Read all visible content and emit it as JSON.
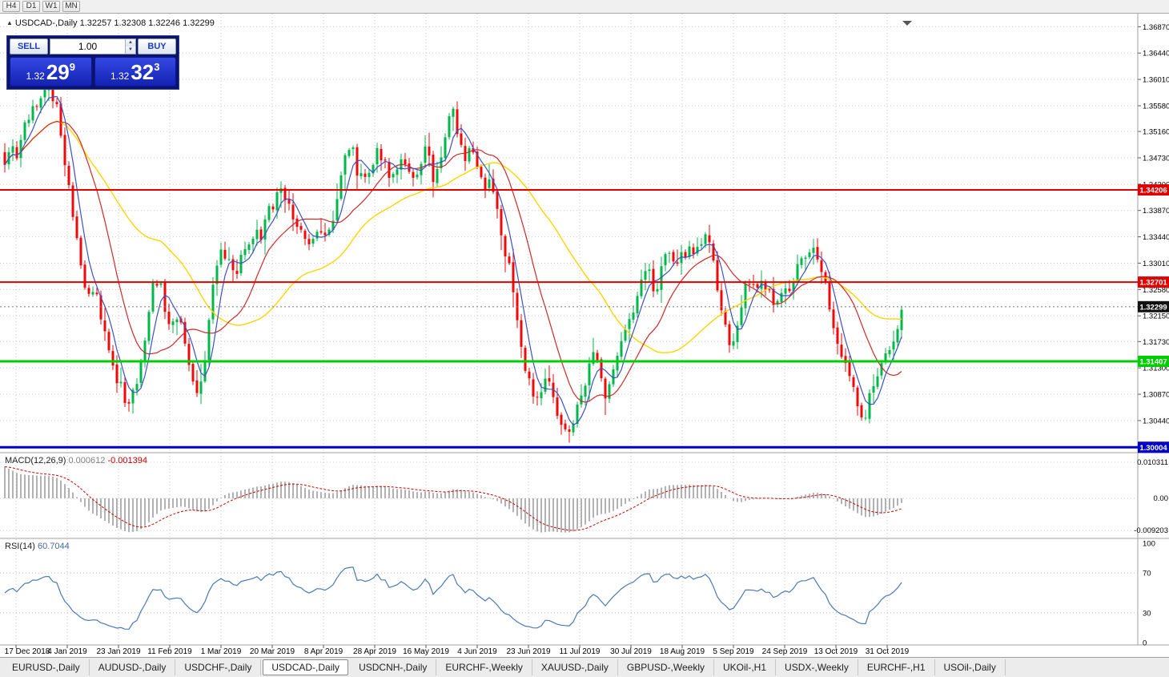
{
  "window_toolbar": {
    "timeframes": [
      "H4",
      "D1",
      "W1",
      "MN"
    ]
  },
  "chart_header": {
    "icon": "▲",
    "symbol": "USDCAD-,Daily",
    "ohlc": "1.32257 1.32308 1.32246 1.32299"
  },
  "trade_panel": {
    "sell_label": "SELL",
    "buy_label": "BUY",
    "volume": "1.00",
    "spin_up_icon": "▲",
    "spin_down_icon": "▼",
    "sell_price": {
      "small": "1.32",
      "big": "29",
      "sup": "9"
    },
    "buy_price": {
      "small": "1.32",
      "big": "32",
      "sup": "3"
    }
  },
  "indicators": {
    "macd": {
      "name": "MACD(12,26,9)",
      "value_main": "0.000612",
      "value_signal": "-0.001394",
      "axis_labels": [
        "0.010311",
        "0.00",
        "-0.009203"
      ]
    },
    "rsi": {
      "name": "RSI(14)",
      "value": "60.7044",
      "axis_labels": [
        "100",
        "70",
        "30",
        "0"
      ],
      "levels": [
        70,
        30
      ]
    }
  },
  "bottom_tabs": {
    "active": "USDCAD-,Daily",
    "tabs": [
      "EURUSD-,Daily",
      "AUDUSD-,Daily",
      "USDCHF-,Daily",
      "USDCAD-,Daily",
      "USDCNH-,Daily",
      "EURCHF-,Weekly",
      "XAUUSD-,Daily",
      "GBPUSD-,Weekly",
      "UKOil-,H1",
      "USDX-,Weekly",
      "EURCHF-,H1",
      "USOil-,Daily"
    ]
  },
  "chart_data": {
    "type": "candlestick",
    "symbol": "USDCAD",
    "timeframe": "Daily",
    "title": "USDCAD-,Daily",
    "price_axis_ticks": [
      "1.36870",
      "1.36440",
      "1.36010",
      "1.35580",
      "1.35160",
      "1.34730",
      "1.34300",
      "1.33870",
      "1.33440",
      "1.33010",
      "1.32580",
      "1.32150",
      "1.31730",
      "1.31300",
      "1.30870",
      "1.30440"
    ],
    "date_axis_ticks": [
      "17 Dec 2018",
      "4 Jan 2019",
      "23 Jan 2019",
      "11 Feb 2019",
      "1 Mar 2019",
      "20 Mar 2019",
      "8 Apr 2019",
      "28 Apr 2019",
      "16 May 2019",
      "4 Jun 2019",
      "23 Jun 2019",
      "11 Jul 2019",
      "30 Jul 2019",
      "18 Aug 2019",
      "5 Sep 2019",
      "24 Sep 2019",
      "13 Oct 2019",
      "31 Oct 2019"
    ],
    "price_range": [
      1.29916,
      1.37084
    ],
    "current_price": {
      "value": 1.32299,
      "label": "1.32299"
    },
    "hlines": [
      {
        "price": 1.34206,
        "label": "1.34206",
        "color": "#e00000",
        "width": 2
      },
      {
        "price": 1.32701,
        "label": "1.32701",
        "color": "#e00000",
        "width": 2
      },
      {
        "price": 1.31407,
        "label": "1.31407",
        "color": "#00ce00",
        "width": 3
      },
      {
        "price": 1.30004,
        "label": "1.30004",
        "color": "#0000c8",
        "width": 3
      }
    ],
    "moving_averages": [
      {
        "name": "MA-fast",
        "period": 5,
        "color": "#3c50c8"
      },
      {
        "name": "MA-mid",
        "period": 15,
        "color": "#d02828"
      },
      {
        "name": "MA-slow",
        "period": 40,
        "color": "#ffd400"
      }
    ],
    "macd": {
      "fast": 12,
      "slow": 26,
      "signal": 9,
      "axis_max": 0.010311,
      "axis_min": -0.009203
    },
    "rsi": {
      "period": 14,
      "current": 60.7044
    },
    "close_keypoints": [
      [
        6,
        1.347
      ],
      [
        14,
        1.35
      ],
      [
        22,
        1.348
      ],
      [
        30,
        1.352
      ],
      [
        38,
        1.354
      ],
      [
        46,
        1.356
      ],
      [
        54,
        1.358
      ],
      [
        62,
        1.3592
      ],
      [
        70,
        1.356
      ],
      [
        78,
        1.348
      ],
      [
        86,
        1.342
      ],
      [
        94,
        1.335
      ],
      [
        102,
        1.328
      ],
      [
        110,
        1.324
      ],
      [
        118,
        1.327
      ],
      [
        126,
        1.321
      ],
      [
        134,
        1.316
      ],
      [
        142,
        1.313
      ],
      [
        150,
        1.31
      ],
      [
        158,
        1.3075
      ],
      [
        166,
        1.309
      ],
      [
        174,
        1.312
      ],
      [
        182,
        1.319
      ],
      [
        190,
        1.326
      ],
      [
        198,
        1.328
      ],
      [
        206,
        1.323
      ],
      [
        214,
        1.319
      ],
      [
        222,
        1.321
      ],
      [
        230,
        1.318
      ],
      [
        238,
        1.313
      ],
      [
        246,
        1.309
      ],
      [
        254,
        1.312
      ],
      [
        262,
        1.323
      ],
      [
        270,
        1.33
      ],
      [
        278,
        1.333
      ],
      [
        286,
        1.33
      ],
      [
        294,
        1.328
      ],
      [
        302,
        1.331
      ],
      [
        310,
        1.333
      ],
      [
        318,
        1.335
      ],
      [
        326,
        1.334
      ],
      [
        334,
        1.338
      ],
      [
        342,
        1.34
      ],
      [
        350,
        1.343
      ],
      [
        358,
        1.34
      ],
      [
        366,
        1.337
      ],
      [
        374,
        1.335
      ],
      [
        382,
        1.333
      ],
      [
        390,
        1.335
      ],
      [
        398,
        1.336
      ],
      [
        406,
        1.335
      ],
      [
        414,
        1.337
      ],
      [
        422,
        1.34
      ],
      [
        430,
        1.347
      ],
      [
        438,
        1.35
      ],
      [
        446,
        1.345
      ],
      [
        454,
        1.343
      ],
      [
        462,
        1.346
      ],
      [
        470,
        1.348
      ],
      [
        478,
        1.347
      ],
      [
        486,
        1.345
      ],
      [
        494,
        1.346
      ],
      [
        502,
        1.348
      ],
      [
        510,
        1.346
      ],
      [
        518,
        1.344
      ],
      [
        526,
        1.347
      ],
      [
        534,
        1.349
      ],
      [
        542,
        1.343
      ],
      [
        550,
        1.347
      ],
      [
        558,
        1.352
      ],
      [
        566,
        1.355
      ],
      [
        572,
        1.35
      ],
      [
        580,
        1.347
      ],
      [
        588,
        1.349
      ],
      [
        596,
        1.346
      ],
      [
        604,
        1.343
      ],
      [
        612,
        1.344
      ],
      [
        620,
        1.341
      ],
      [
        628,
        1.333
      ],
      [
        636,
        1.329
      ],
      [
        644,
        1.323
      ],
      [
        652,
        1.316
      ],
      [
        660,
        1.311
      ],
      [
        668,
        1.308
      ],
      [
        676,
        1.31
      ],
      [
        684,
        1.312
      ],
      [
        692,
        1.307
      ],
      [
        700,
        1.304
      ],
      [
        708,
        1.3025
      ],
      [
        716,
        1.305
      ],
      [
        724,
        1.307
      ],
      [
        732,
        1.311
      ],
      [
        740,
        1.315
      ],
      [
        748,
        1.313
      ],
      [
        756,
        1.308
      ],
      [
        764,
        1.311
      ],
      [
        772,
        1.316
      ],
      [
        780,
        1.319
      ],
      [
        788,
        1.321
      ],
      [
        796,
        1.325
      ],
      [
        804,
        1.329
      ],
      [
        812,
        1.328
      ],
      [
        820,
        1.325
      ],
      [
        828,
        1.33
      ],
      [
        836,
        1.332
      ],
      [
        844,
        1.33
      ],
      [
        852,
        1.331
      ],
      [
        860,
        1.333
      ],
      [
        868,
        1.331
      ],
      [
        876,
        1.333
      ],
      [
        884,
        1.335
      ],
      [
        890,
        1.331
      ],
      [
        896,
        1.326
      ],
      [
        904,
        1.32
      ],
      [
        912,
        1.316
      ],
      [
        920,
        1.319
      ],
      [
        928,
        1.325
      ],
      [
        936,
        1.327
      ],
      [
        944,
        1.325
      ],
      [
        952,
        1.328
      ],
      [
        960,
        1.325
      ],
      [
        968,
        1.324
      ],
      [
        976,
        1.326
      ],
      [
        984,
        1.325
      ],
      [
        992,
        1.328
      ],
      [
        1000,
        1.33
      ],
      [
        1008,
        1.332
      ],
      [
        1016,
        1.333
      ],
      [
        1024,
        1.329
      ],
      [
        1032,
        1.326
      ],
      [
        1040,
        1.321
      ],
      [
        1048,
        1.317
      ],
      [
        1056,
        1.313
      ],
      [
        1064,
        1.31
      ],
      [
        1072,
        1.307
      ],
      [
        1080,
        1.305
      ],
      [
        1088,
        1.309
      ],
      [
        1096,
        1.312
      ],
      [
        1104,
        1.314
      ],
      [
        1112,
        1.316
      ],
      [
        1120,
        1.32
      ],
      [
        1128,
        1.323
      ],
      [
        1132,
        1.323
      ]
    ],
    "colors": {
      "bull": "#00b84a",
      "bear": "#ee0a0a",
      "grid": "#c9c9c9",
      "macd_hist": "#b2b2b2",
      "macd_signal": "#cc0000",
      "rsi_line": "#4a7ab4",
      "separator": "#a2a2a2",
      "axis_text": "#000000",
      "current_price_line": "#777777"
    }
  }
}
